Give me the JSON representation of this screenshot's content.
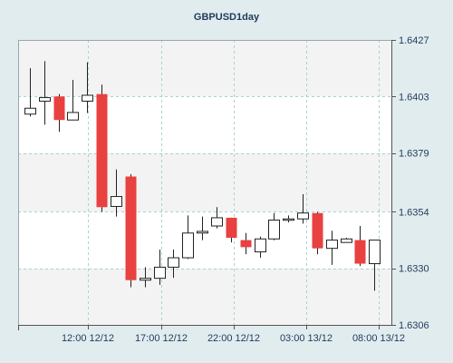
{
  "chart_data": {
    "type": "candlestick",
    "title": "GBPUSD1day",
    "xlabel": "",
    "ylabel": "",
    "ylim": [
      1.6306,
      1.6427
    ],
    "y_ticks": [
      "1.6427",
      "1.6403",
      "1.6379",
      "1.6354",
      "1.6330",
      "1.6306"
    ],
    "x_ticks": [
      "12:00 12/12",
      "17:00 12/12",
      "22:00 12/12",
      "03:00 13/12",
      "08:00 13/12"
    ],
    "grid": true,
    "colors": {
      "page_background": "#e1ecef",
      "plot_background": "#ffffff",
      "alternate_band": "#f3f3f3",
      "grid": "#a9d3d3",
      "bear": "#e94040",
      "bull": "#ffffff",
      "candle_outline": "#222222",
      "text": "#1f3b5a",
      "axis": "#555555"
    },
    "candles": [
      {
        "open": 1.63955,
        "high": 1.6415,
        "low": 1.63945,
        "close": 1.6398
      },
      {
        "open": 1.6401,
        "high": 1.6418,
        "low": 1.6391,
        "close": 1.64025
      },
      {
        "open": 1.6403,
        "high": 1.6404,
        "low": 1.6388,
        "close": 1.6393
      },
      {
        "open": 1.6393,
        "high": 1.641,
        "low": 1.6393,
        "close": 1.63962
      },
      {
        "open": 1.6401,
        "high": 1.64175,
        "low": 1.6396,
        "close": 1.64035
      },
      {
        "open": 1.6404,
        "high": 1.6408,
        "low": 1.6354,
        "close": 1.6356
      },
      {
        "open": 1.63563,
        "high": 1.6372,
        "low": 1.6352,
        "close": 1.63605
      },
      {
        "open": 1.6369,
        "high": 1.637,
        "low": 1.6322,
        "close": 1.6325
      },
      {
        "open": 1.6325,
        "high": 1.63305,
        "low": 1.6322,
        "close": 1.63258
      },
      {
        "open": 1.63258,
        "high": 1.6338,
        "low": 1.6323,
        "close": 1.63305
      },
      {
        "open": 1.63305,
        "high": 1.6338,
        "low": 1.6326,
        "close": 1.63345
      },
      {
        "open": 1.63345,
        "high": 1.63525,
        "low": 1.6334,
        "close": 1.6345
      },
      {
        "open": 1.6345,
        "high": 1.6352,
        "low": 1.6342,
        "close": 1.63457
      },
      {
        "open": 1.6348,
        "high": 1.6356,
        "low": 1.6347,
        "close": 1.63515
      },
      {
        "open": 1.63515,
        "high": 1.63515,
        "low": 1.6341,
        "close": 1.6343
      },
      {
        "open": 1.6342,
        "high": 1.6345,
        "low": 1.6336,
        "close": 1.6339
      },
      {
        "open": 1.6337,
        "high": 1.63435,
        "low": 1.63345,
        "close": 1.63425
      },
      {
        "open": 1.63425,
        "high": 1.63535,
        "low": 1.6342,
        "close": 1.63505
      },
      {
        "open": 1.63505,
        "high": 1.63525,
        "low": 1.63495,
        "close": 1.6351
      },
      {
        "open": 1.6351,
        "high": 1.63615,
        "low": 1.6349,
        "close": 1.63535
      },
      {
        "open": 1.63535,
        "high": 1.6354,
        "low": 1.6336,
        "close": 1.63385
      },
      {
        "open": 1.63385,
        "high": 1.6346,
        "low": 1.63315,
        "close": 1.6342
      },
      {
        "open": 1.6341,
        "high": 1.6343,
        "low": 1.6341,
        "close": 1.63425
      },
      {
        "open": 1.6342,
        "high": 1.6348,
        "low": 1.6331,
        "close": 1.6332
      },
      {
        "open": 1.6332,
        "high": 1.6342,
        "low": 1.63205,
        "close": 1.6342
      }
    ]
  }
}
